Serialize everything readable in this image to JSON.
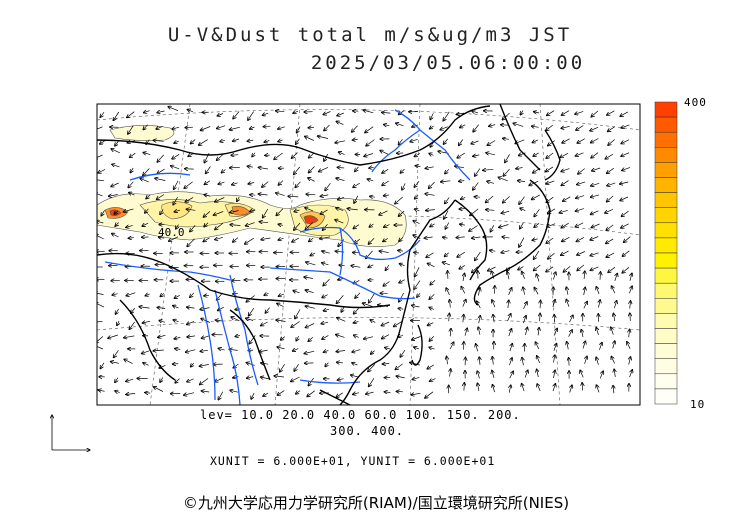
{
  "title": {
    "line1": "U-V&Dust total m/s&ug/m3 JST",
    "line2": "2025/03/05.06:00:00"
  },
  "map": {
    "contour_label": "40.0",
    "land_color": "#000000",
    "river_color": "#1a5cff",
    "dust_colors": [
      "#fffbd0",
      "#fff5a8",
      "#ffe680",
      "#ffc850",
      "#ff8c28",
      "#e84010"
    ]
  },
  "colorbar": {
    "max_label": "400",
    "min_label": "10",
    "colors": [
      "#ff4000",
      "#ff5a00",
      "#ff7000",
      "#ff8a00",
      "#ffa000",
      "#ffb400",
      "#ffc600",
      "#ffd400",
      "#ffe000",
      "#ffea00",
      "#fff200",
      "#fff640",
      "#fff870",
      "#fffa90",
      "#fffbb0",
      "#fffcc8",
      "#fffdd8",
      "#fffee4",
      "#fffff0",
      "#fffff8"
    ]
  },
  "levels": {
    "line1": "lev= 10.0 20.0 40.0 60.0 100. 150. 200.",
    "line2": "300. 400."
  },
  "units": {
    "line": "XUNIT = 6.000E+01, YUNIT = 6.000E+01"
  },
  "copyright": "©九州大学応用力学研究所(RIAM)/国立環境研究所(NIES)"
}
